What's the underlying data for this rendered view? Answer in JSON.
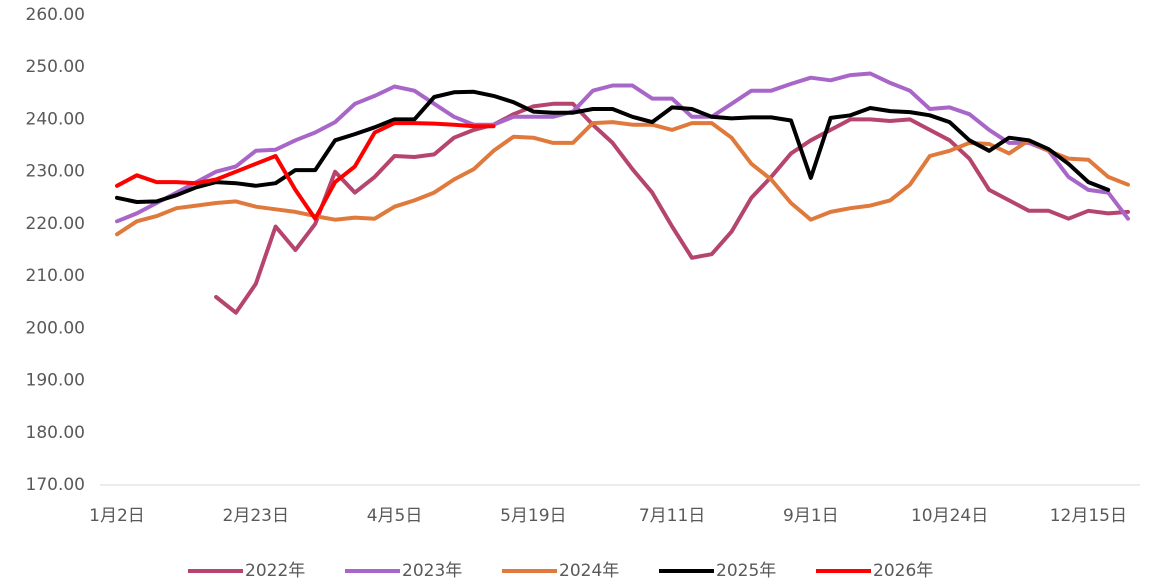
{
  "chart_data": {
    "type": "line",
    "categories": [
      "1月2日",
      null,
      null,
      null,
      null,
      null,
      null,
      "2月23日",
      null,
      null,
      null,
      null,
      null,
      null,
      "4月5日",
      null,
      null,
      null,
      null,
      null,
      null,
      "5月19日",
      null,
      null,
      null,
      null,
      null,
      null,
      "7月11日",
      null,
      null,
      null,
      null,
      null,
      null,
      "9月1日",
      null,
      null,
      null,
      null,
      null,
      null,
      "10月24日",
      null,
      null,
      null,
      null,
      null,
      null,
      "12月15日",
      null,
      null
    ],
    "ylim": [
      170,
      260
    ],
    "yticks": [
      {
        "value": 170,
        "label": "170.00"
      },
      {
        "value": 180,
        "label": "180.00"
      },
      {
        "value": 190,
        "label": "190.00"
      },
      {
        "value": 200,
        "label": "200.00"
      },
      {
        "value": 210,
        "label": "210.00"
      },
      {
        "value": 220,
        "label": "220.00"
      },
      {
        "value": 230,
        "label": "230.00"
      },
      {
        "value": 240,
        "label": "240.00"
      },
      {
        "value": 250,
        "label": "250.00"
      },
      {
        "value": 260,
        "label": "260.00"
      }
    ],
    "grid": false,
    "legend": "bottom",
    "series": [
      {
        "name": "2022年",
        "color": "#b5446e",
        "values": [
          null,
          null,
          null,
          null,
          null,
          206,
          203,
          208.5,
          219.5,
          215,
          220,
          230,
          226,
          229,
          233,
          232.8,
          233.3,
          236.5,
          238,
          239,
          241,
          242.5,
          243,
          243,
          239,
          235.5,
          230.5,
          226,
          219.5,
          213.5,
          214.2,
          218.5,
          225,
          229,
          233.5,
          236,
          238,
          240,
          240,
          239.7,
          240,
          238,
          236,
          232.5,
          226.5,
          224.5,
          222.5,
          222.5,
          221,
          222.5,
          222,
          222.3
        ]
      },
      {
        "name": "2023年",
        "color": "#a866c9",
        "values": [
          220.5,
          222,
          224,
          226,
          228,
          230,
          231,
          234,
          234.2,
          236,
          237.5,
          239.5,
          243,
          244.5,
          246.3,
          245.5,
          243,
          240.5,
          239,
          239,
          240.5,
          240.5,
          240.5,
          241.5,
          245.5,
          246.5,
          246.5,
          244,
          244,
          240.5,
          240.5,
          243,
          245.5,
          245.5,
          246.8,
          248,
          247.5,
          248.5,
          248.8,
          247,
          245.5,
          242,
          242.3,
          241,
          238,
          235.5,
          235.5,
          234,
          229,
          226.5,
          226,
          221
        ]
      },
      {
        "name": "2024年",
        "color": "#e07a3c",
        "values": [
          218,
          220.5,
          221.5,
          223,
          223.5,
          224,
          224.3,
          223.3,
          222.8,
          222.3,
          221.5,
          220.8,
          221.2,
          221,
          223.3,
          224.5,
          226,
          228.5,
          230.5,
          234,
          236.7,
          236.5,
          235.5,
          235.5,
          239.3,
          239.5,
          239,
          239,
          238,
          239.3,
          239.3,
          236.5,
          231.5,
          228.5,
          224,
          220.8,
          222.3,
          223,
          223.5,
          224.5,
          227.5,
          233,
          234,
          235.5,
          235.3,
          233.5,
          236,
          234,
          232.5,
          232.3,
          229,
          227.5
        ]
      },
      {
        "name": "2025年",
        "color": "#000000",
        "values": [
          225,
          224.2,
          224.3,
          225.5,
          227,
          228,
          227.8,
          227.3,
          227.8,
          230.3,
          230.3,
          236,
          237.2,
          238.5,
          240,
          240,
          244.3,
          245.2,
          245.3,
          244.5,
          243.3,
          241.5,
          241.3,
          241.3,
          242,
          242,
          240.5,
          239.5,
          242.3,
          242,
          240.5,
          240.2,
          240.4,
          240.4,
          239.8,
          228.8,
          240.3,
          240.8,
          242.2,
          241.6,
          241.4,
          240.8,
          239.5,
          236,
          234,
          236.5,
          236,
          234.3,
          231.5,
          228,
          226.5,
          null
        ]
      },
      {
        "name": "2026年",
        "color": "#ff0000",
        "values": [
          227.3,
          229.3,
          228,
          228,
          227.8,
          228.5,
          230,
          231.5,
          233,
          226.5,
          221,
          228,
          231,
          237.5,
          239.3,
          239.3,
          239.2,
          239,
          238.7,
          238.7,
          null,
          null,
          null,
          null,
          null,
          null,
          null,
          null,
          null,
          null,
          null,
          null,
          null,
          null,
          null,
          null,
          null,
          null,
          null,
          null,
          null,
          null,
          null,
          null,
          null,
          null,
          null,
          null,
          null,
          null,
          null,
          null
        ]
      }
    ]
  }
}
